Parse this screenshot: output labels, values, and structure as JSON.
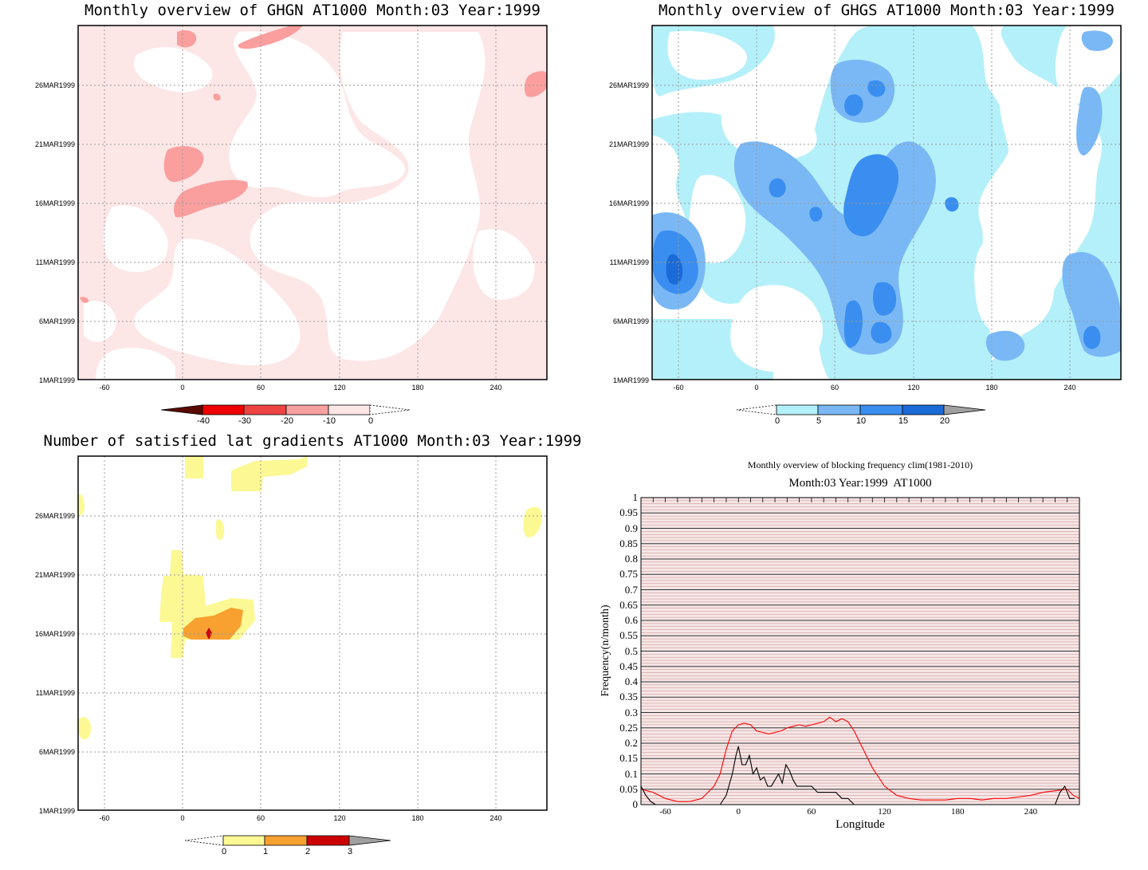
{
  "chart_data": [
    {
      "type": "heatmap",
      "title": "Monthly overview of GHGN AT1000 Month:03 Year:1999",
      "x_ticks": [
        "-60",
        "0",
        "60",
        "120",
        "180",
        "240"
      ],
      "y_ticks": [
        "1MAR1999",
        "6MAR1999",
        "11MAR1999",
        "16MAR1999",
        "21MAR1999",
        "26MAR1999"
      ],
      "colorbar": {
        "labels": [
          "-40",
          "-30",
          "-20",
          "-10",
          "0"
        ],
        "colors": [
          "#5a0a00",
          "#ee0000",
          "#ee4444",
          "#f8a0a0",
          "#fde6e6"
        ]
      }
    },
    {
      "type": "heatmap",
      "title": "Monthly overview of GHGS AT1000 Month:03 Year:1999",
      "x_ticks": [
        "-60",
        "0",
        "60",
        "120",
        "180",
        "240"
      ],
      "y_ticks": [
        "1MAR1999",
        "6MAR1999",
        "11MAR1999",
        "16MAR1999",
        "21MAR1999",
        "26MAR1999"
      ],
      "colorbar": {
        "labels": [
          "0",
          "5",
          "10",
          "15",
          "20"
        ],
        "colors": [
          "#b4f0fa",
          "#7ab8f5",
          "#3a8ef0",
          "#1a6ad8",
          "#a0a0a0"
        ]
      }
    },
    {
      "type": "heatmap",
      "title": "Number of satisfied lat gradients AT1000 Month:03 Year:1999",
      "x_ticks": [
        "-60",
        "0",
        "60",
        "120",
        "180",
        "240"
      ],
      "y_ticks": [
        "1MAR1999",
        "6MAR1999",
        "11MAR1999",
        "16MAR1999",
        "21MAR1999",
        "26MAR1999"
      ],
      "colorbar": {
        "labels": [
          "0",
          "1",
          "2",
          "3"
        ],
        "colors": [
          "#fcf894",
          "#f8a030",
          "#cc0000",
          "#a0a0a0"
        ]
      }
    },
    {
      "type": "line",
      "title": "Monthly overview of blocking frequency clim(1981-2010)",
      "subtitle": "Month:03 Year:1999  AT1000",
      "xlabel": "Longitude",
      "ylabel": "Frequency(n/month)",
      "xlim": [
        -80,
        280
      ],
      "ylim": [
        0,
        1
      ],
      "x_ticks": [
        -60,
        0,
        60,
        120,
        180,
        240
      ],
      "y_ticks": [
        "0",
        "0.05",
        "0.1",
        "0.15",
        "0.2",
        "0.25",
        "0.3",
        "0.35",
        "0.4",
        "0.45",
        "0.5",
        "0.55",
        "0.6",
        "0.65",
        "0.7",
        "0.75",
        "0.8",
        "0.85",
        "0.9",
        "0.95",
        "1"
      ],
      "series": [
        {
          "color": "#ff0000",
          "x": [
            -80,
            -70,
            -60,
            -50,
            -40,
            -30,
            -20,
            -15,
            -10,
            -5,
            0,
            5,
            10,
            15,
            20,
            25,
            30,
            35,
            40,
            45,
            50,
            55,
            60,
            65,
            70,
            75,
            80,
            85,
            90,
            95,
            100,
            110,
            120,
            130,
            140,
            150,
            160,
            170,
            180,
            190,
            200,
            210,
            220,
            230,
            240,
            250,
            260,
            270,
            275,
            280
          ],
          "y": [
            0.05,
            0.04,
            0.02,
            0.01,
            0.01,
            0.02,
            0.06,
            0.1,
            0.18,
            0.24,
            0.26,
            0.265,
            0.26,
            0.24,
            0.235,
            0.23,
            0.235,
            0.24,
            0.25,
            0.255,
            0.26,
            0.255,
            0.26,
            0.265,
            0.27,
            0.285,
            0.27,
            0.28,
            0.27,
            0.24,
            0.2,
            0.12,
            0.06,
            0.03,
            0.02,
            0.015,
            0.015,
            0.015,
            0.02,
            0.02,
            0.015,
            0.02,
            0.02,
            0.025,
            0.03,
            0.04,
            0.045,
            0.05,
            0.03,
            0.02
          ]
        },
        {
          "color": "#000000",
          "x": [
            -80,
            -76,
            -72,
            -68,
            -15,
            -10,
            -5,
            -2,
            0,
            3,
            6,
            9,
            12,
            15,
            18,
            21,
            24,
            27,
            30,
            33,
            36,
            39,
            42,
            45,
            48,
            55,
            60,
            65,
            70,
            75,
            80,
            85,
            90,
            95,
            100,
            260,
            264,
            268,
            272,
            276
          ],
          "y": [
            0.06,
            0.03,
            0.01,
            0,
            0,
            0.03,
            0.1,
            0.16,
            0.19,
            0.13,
            0.13,
            0.16,
            0.1,
            0.12,
            0.08,
            0.09,
            0.06,
            0.06,
            0.08,
            0.1,
            0.07,
            0.13,
            0.11,
            0.08,
            0.06,
            0.06,
            0.06,
            0.04,
            0.04,
            0.04,
            0.04,
            0.02,
            0.02,
            0,
            0,
            0,
            0.04,
            0.06,
            0.02,
            0.02
          ]
        }
      ]
    }
  ]
}
